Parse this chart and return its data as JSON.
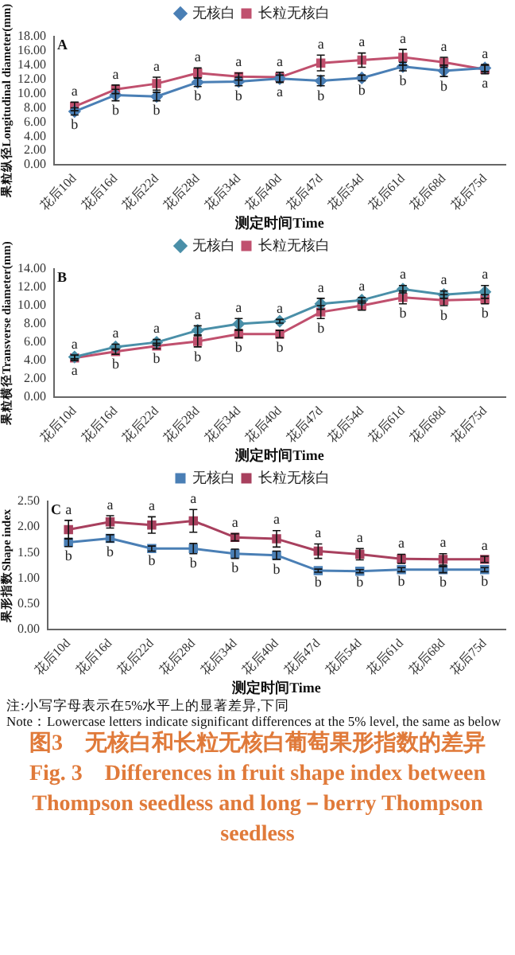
{
  "chart_data": [
    {
      "type": "line",
      "title": "A",
      "xlabel": "测定时间Time",
      "ylabel": "果粒纵径Longitudinal diameter(mm)",
      "categories": [
        "花后10d",
        "花后16d",
        "花后22d",
        "花后28d",
        "花后34d",
        "花后40d",
        "花后47d",
        "花后54d",
        "花后61d",
        "花后68d",
        "花后75d"
      ],
      "ylim": [
        0,
        18
      ],
      "yticks": [
        {
          "value": 0,
          "label": "0.00"
        },
        {
          "value": 2,
          "label": "2.00"
        },
        {
          "value": 4,
          "label": "4.00"
        },
        {
          "value": 6,
          "label": "6.00"
        },
        {
          "value": 8,
          "label": "8.00"
        },
        {
          "value": 10,
          "label": "10.00"
        },
        {
          "value": 12,
          "label": "12.00"
        },
        {
          "value": 14,
          "label": "14.00"
        },
        {
          "value": 16,
          "label": "16.00"
        },
        {
          "value": 18,
          "label": "18.00"
        }
      ],
      "grid": false,
      "legend": "top",
      "line_style": "solid",
      "series": [
        {
          "name": "无核白",
          "color": "#4a7fb5",
          "marker": "diamond",
          "values": [
            7.5,
            9.8,
            9.6,
            11.6,
            11.7,
            12.1,
            11.8,
            12.2,
            13.8,
            13.2,
            13.6
          ],
          "errors": [
            0.5,
            0.8,
            0.6,
            0.6,
            0.6,
            0.5,
            0.7,
            0.4,
            0.6,
            0.8,
            0.5
          ],
          "value_labels": [
            "b",
            "b",
            "b",
            "b",
            "b",
            "a",
            "b",
            "b",
            "b",
            "b",
            "a"
          ]
        },
        {
          "name": "长粒无核白",
          "color": "#c0506e",
          "marker": "square",
          "values": [
            8.2,
            10.6,
            11.4,
            12.9,
            12.4,
            12.3,
            14.3,
            14.7,
            15.1,
            14.4,
            13.4
          ],
          "errors": [
            0.6,
            0.6,
            0.9,
            0.7,
            0.5,
            0.7,
            1.1,
            1.0,
            1.1,
            0.7,
            0.6
          ],
          "value_labels": [
            "a",
            "a",
            "a",
            "a",
            "a",
            "a",
            "a",
            "a",
            "a",
            "a",
            "a"
          ]
        }
      ]
    },
    {
      "type": "line",
      "title": "B",
      "xlabel": "测定时间Time",
      "ylabel": "果粒横径Transverse diameter(mm)",
      "categories": [
        "花后10d",
        "花后16d",
        "花后22d",
        "花后28d",
        "花后34d",
        "花后40d",
        "花后47d",
        "花后54d",
        "花后61d",
        "花后68d",
        "花后75d"
      ],
      "ylim": [
        0,
        14
      ],
      "yticks": [
        {
          "value": 0,
          "label": "0.00"
        },
        {
          "value": 2,
          "label": "2.00"
        },
        {
          "value": 4,
          "label": "4.00"
        },
        {
          "value": 6,
          "label": "6.00"
        },
        {
          "value": 8,
          "label": "8.00"
        },
        {
          "value": 10,
          "label": "10.00"
        },
        {
          "value": 12,
          "label": "12.00"
        },
        {
          "value": 14,
          "label": "14.00"
        }
      ],
      "grid": false,
      "legend": "top",
      "line_style": "solid",
      "series": [
        {
          "name": "无核白",
          "color": "#4a8fa8",
          "marker": "diamond",
          "values": [
            4.4,
            5.5,
            6.0,
            7.3,
            8.0,
            8.3,
            10.2,
            10.6,
            11.8,
            11.2,
            11.5
          ],
          "errors": [
            0.2,
            0.3,
            0.3,
            0.5,
            0.6,
            0.2,
            0.6,
            0.3,
            0.4,
            0.4,
            0.7
          ],
          "value_labels": [
            "a",
            "a",
            "a",
            "a",
            "a",
            "a",
            "a",
            "a",
            "a",
            "a",
            "a"
          ]
        },
        {
          "name": "长粒无核白",
          "color": "#c0506e",
          "marker": "square",
          "values": [
            4.3,
            5.0,
            5.6,
            6.1,
            6.9,
            6.9,
            9.3,
            10.0,
            10.9,
            10.6,
            10.7
          ],
          "errors": [
            0.3,
            0.3,
            0.3,
            0.6,
            0.4,
            0.4,
            0.7,
            0.5,
            0.7,
            0.6,
            0.5
          ],
          "value_labels": [
            "a",
            "b",
            "b",
            "b",
            "b",
            "b",
            "b",
            null,
            "b",
            "b",
            "b"
          ]
        }
      ]
    },
    {
      "type": "line",
      "title": "C",
      "xlabel": "测定时间Time",
      "ylabel": "果形指数Shape index",
      "categories": [
        "花后10d",
        "花后16d",
        "花后22d",
        "花后28d",
        "花后34d",
        "花后40d",
        "花后47d",
        "花后54d",
        "花后61d",
        "花后68d",
        "花后75d"
      ],
      "ylim": [
        0,
        2.5
      ],
      "yticks": [
        {
          "value": 0,
          "label": "0.00"
        },
        {
          "value": 0.5,
          "label": "0.50"
        },
        {
          "value": 1,
          "label": "1.00"
        },
        {
          "value": 1.5,
          "label": "1.50"
        },
        {
          "value": 2,
          "label": "2.00"
        },
        {
          "value": 2.5,
          "label": "2.50"
        }
      ],
      "grid": false,
      "legend": "top",
      "line_style": "solid",
      "series": [
        {
          "name": "无核白",
          "color": "#4a7fb5",
          "marker": "square",
          "values": [
            1.7,
            1.78,
            1.58,
            1.58,
            1.48,
            1.45,
            1.15,
            1.14,
            1.17,
            1.17,
            1.17
          ],
          "errors": [
            0.08,
            0.07,
            0.05,
            0.1,
            0.09,
            0.08,
            0.03,
            0.03,
            0.04,
            0.06,
            0.04
          ],
          "value_labels": [
            "b",
            "b",
            "b",
            "b",
            "b",
            "b",
            "b",
            "b",
            "b",
            "b",
            "b"
          ]
        },
        {
          "name": "长粒无核白",
          "color": "#a8405e",
          "marker": "square",
          "values": [
            1.95,
            2.1,
            2.04,
            2.12,
            1.8,
            1.77,
            1.53,
            1.47,
            1.38,
            1.37,
            1.37
          ],
          "errors": [
            0.18,
            0.12,
            0.16,
            0.22,
            0.07,
            0.16,
            0.14,
            0.11,
            0.09,
            0.11,
            0.06
          ],
          "value_labels": [
            "a",
            "a",
            "a",
            "a",
            "a",
            "a",
            "a",
            "a",
            "a",
            "a",
            "a"
          ]
        }
      ],
      "annotations": [
        "注:小写字母表示在5%水平上的显著差异,下同",
        "Note：Lowercase letters indicate significant differences at the 5% level, the same as below",
        "图3　无核白和长粒无核白葡萄果形指数的差异",
        "Fig. 3　Differences in fruit shape index between Thompson seedless and long－berry Thompson seedless"
      ]
    }
  ]
}
